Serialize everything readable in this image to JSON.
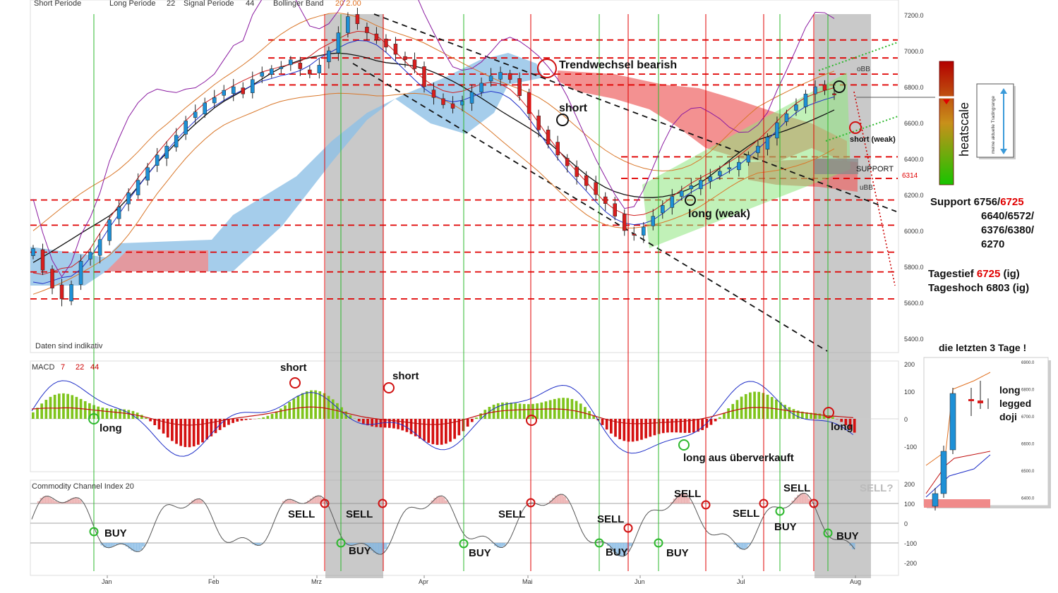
{
  "header": {
    "short_period": "Short Periode",
    "long_period": "Long Periode",
    "long_period_value": "22",
    "signal_period": "Signal Periode",
    "signal_period_value": "44",
    "bollinger": "Bollinger Band",
    "bollinger_values": "20  2.00"
  },
  "chart_data": [
    {
      "type": "candlestick",
      "name": "price",
      "x_months": [
        "Jan",
        "Feb",
        "Mrz",
        "Apr",
        "Mai",
        "Jun",
        "Jul",
        "Aug"
      ],
      "yticks": [
        "7200.0",
        "7000.0",
        "6800.0",
        "6600.0",
        "6400.0",
        "6200.0",
        "6000.0",
        "5800.0",
        "5600.0",
        "5400.0"
      ],
      "ylim": [
        5350,
        7250
      ],
      "support_levels": [
        7060,
        6960,
        6870,
        6810,
        6410,
        6290,
        6170,
        6030,
        5880,
        5770,
        5620
      ],
      "footnote": "Daten sind indikativ",
      "trend_line_annotations": [
        "Trendwechsel bearish",
        "short",
        "long (weak)",
        "short (weak)",
        "SUPPORT",
        "oBB",
        "uBB"
      ],
      "support_tag": "6314",
      "closes_sample": [
        5900,
        5780,
        5680,
        5620,
        5700,
        5830,
        5880,
        5950,
        6060,
        6130,
        6210,
        6280,
        6350,
        6420,
        6470,
        6530,
        6610,
        6660,
        6710,
        6740,
        6780,
        6800,
        6760,
        6840,
        6880,
        6900,
        6910,
        6950,
        6900,
        6870,
        6920,
        7000,
        7100,
        7190,
        7150,
        7100,
        7060,
        7020,
        6980,
        6950,
        6900,
        6800,
        6740,
        6700,
        6680,
        6720,
        6770,
        6820,
        6860,
        6880,
        6840,
        6750,
        6650,
        6560,
        6480,
        6420,
        6360,
        6300,
        6250,
        6200,
        6150,
        6080,
        6000,
        5980,
        6020,
        6080,
        6140,
        6190,
        6220,
        6250,
        6280,
        6300,
        6330,
        6350,
        6380,
        6420,
        6470,
        6520,
        6600,
        6650,
        6700,
        6760,
        6800,
        6780,
        6760
      ]
    },
    {
      "type": "bar",
      "name": "MACD",
      "label": "MACD",
      "label_params": [
        "7",
        "22",
        "44"
      ],
      "yticks": [
        "200",
        "100",
        "0",
        "-100"
      ],
      "ylim": [
        -200,
        220
      ],
      "annotations": [
        "long",
        "short",
        "short",
        "long aus überverkauft",
        "long"
      ]
    },
    {
      "type": "area",
      "name": "CCI",
      "label": "Commodity Channel Index  20",
      "yticks": [
        "200",
        "100",
        "0",
        "-100",
        "-200"
      ],
      "ylim": [
        -250,
        250
      ],
      "annotations": [
        "BUY",
        "SELL",
        "BUY",
        "SELL",
        "BUY",
        "SELL",
        "SELL",
        "BUY",
        "BUY",
        "SELL",
        "SELL",
        "BUY",
        "SELL",
        "BUY",
        "SELL?"
      ]
    }
  ],
  "right_panel": {
    "heatscale_label": "heatscale",
    "trading_range_label": "meine aktuelle Tradingrange",
    "support_title": "Support",
    "support_line1_a": "6756/",
    "support_line1_b": "6725",
    "support_line2": "6640/6572/",
    "support_line3": "6376/6380/",
    "support_line4": "6270",
    "tagestief_label": "Tagestief",
    "tagestief_value": "6725",
    "tagestief_suffix": "(ig)",
    "tageshoch": "Tageshoch 6803 (ig)",
    "inset_title": "die letzten 3 Tage !",
    "inset_note": [
      "long",
      "legged",
      "doji"
    ],
    "inset_yticks": [
      "6900.0",
      "6800.0",
      "6700.0",
      "6600.0",
      "6500.0",
      "6400.0"
    ]
  },
  "colors": {
    "red": "#e00000",
    "green": "#2db82d",
    "candle_bull": "#1e90d6",
    "candle_bear": "#d81e1e",
    "macd_pos": "#7fc41c",
    "macd_neg": "#d41010"
  }
}
